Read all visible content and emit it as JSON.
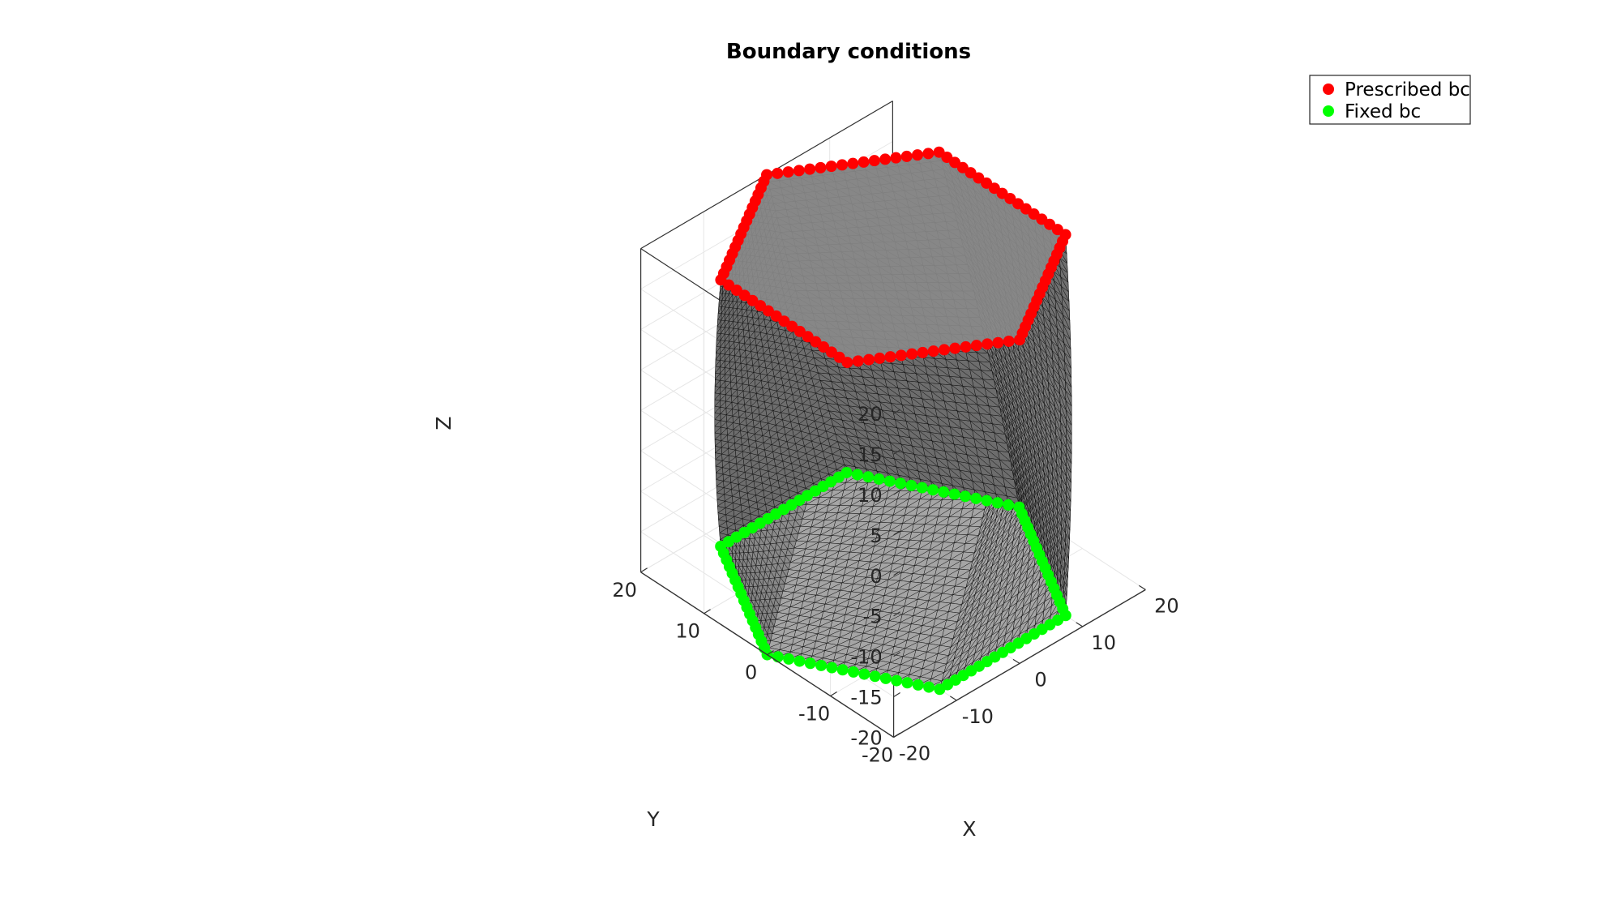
{
  "figure": {
    "title": "Boundary conditions"
  },
  "chart_data": {
    "type": "scatter",
    "title": "Boundary conditions",
    "view": "3d",
    "xlabel": "X",
    "ylabel": "Y",
    "zlabel": "Z",
    "xlim": [
      -20,
      20
    ],
    "ylim": [
      -20,
      20
    ],
    "zlim": [
      -20,
      20
    ],
    "xticks": [
      "-20",
      "-10",
      "0",
      "10",
      "20"
    ],
    "yticks": [
      "-20",
      "-10",
      "0",
      "10",
      "20"
    ],
    "zticks": [
      "-20",
      "-15",
      "-10",
      "-5",
      "0",
      "5",
      "10",
      "15",
      "20"
    ],
    "grid": true,
    "box": true,
    "legend_position": "top-right",
    "surface": {
      "shape": "twisted hexagonal prism mesh",
      "face_color": "#808080",
      "edge_color": "#000000",
      "radius": 20,
      "z_range": [
        -20,
        20
      ],
      "twist_degrees": 30
    },
    "series": [
      {
        "name": "Prescribed bc",
        "color": "#ff0000",
        "z": 20,
        "hexagon_vertices_xy": [
          [
            20,
            0
          ],
          [
            10,
            17.32
          ],
          [
            -10,
            17.32
          ],
          [
            -20,
            0
          ],
          [
            -10,
            -17.32
          ],
          [
            10,
            -17.32
          ]
        ],
        "rotation_degrees": 30,
        "points_per_edge": 16
      },
      {
        "name": "Fixed bc",
        "color": "#00ff00",
        "z": -20,
        "hexagon_vertices_xy": [
          [
            20,
            0
          ],
          [
            10,
            17.32
          ],
          [
            -10,
            17.32
          ],
          [
            -20,
            0
          ],
          [
            -10,
            -17.32
          ],
          [
            10,
            -17.32
          ]
        ],
        "rotation_degrees": 0,
        "points_per_edge": 16
      }
    ]
  }
}
